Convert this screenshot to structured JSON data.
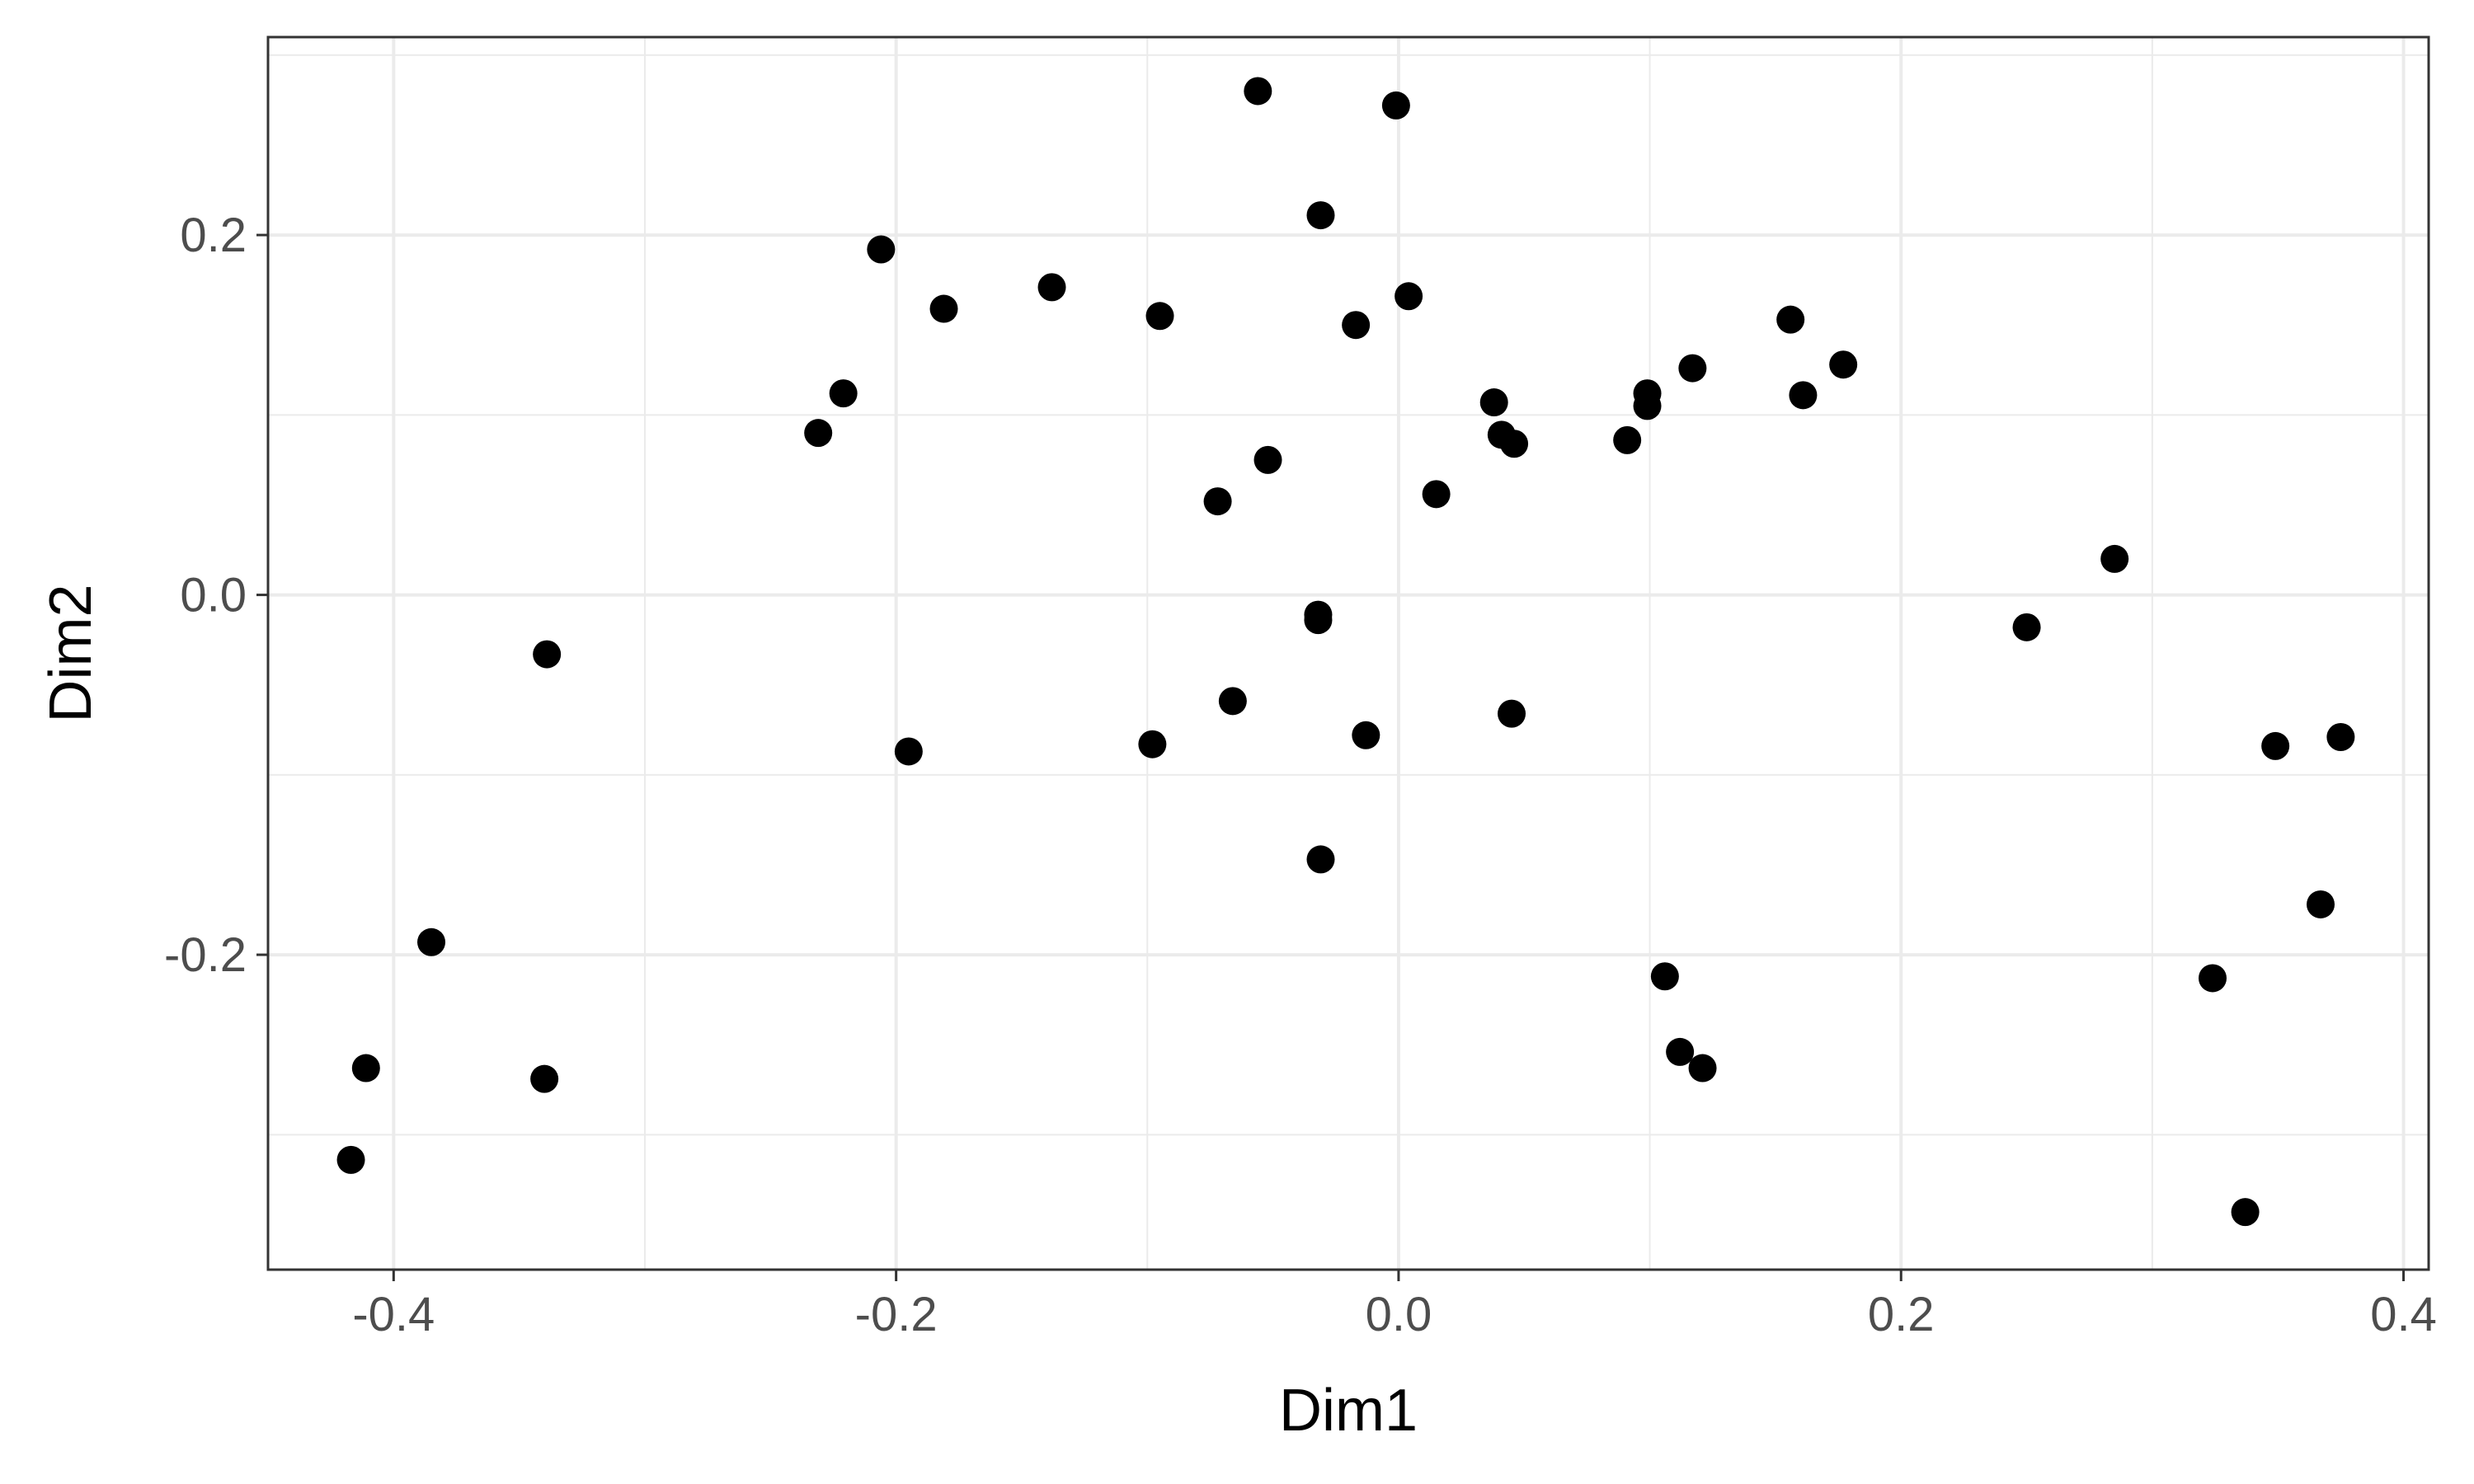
{
  "chart_data": {
    "type": "scatter",
    "title": "",
    "xlabel": "Dim1",
    "ylabel": "Dim2",
    "xlim": [
      -0.45,
      0.41
    ],
    "ylim": [
      -0.375,
      0.31
    ],
    "x_ticks": [
      -0.4,
      -0.2,
      0.0,
      0.2,
      0.4
    ],
    "x_tick_labels": [
      "-0.4",
      "-0.2",
      "0.0",
      "0.2",
      "0.4"
    ],
    "y_ticks": [
      -0.2,
      0.0,
      0.2
    ],
    "y_tick_labels": [
      "-0.2",
      "0.0",
      "0.2"
    ],
    "x_minor_ticks": [
      -0.3,
      -0.1,
      0.1,
      0.3
    ],
    "y_minor_ticks": [
      -0.3,
      -0.1,
      0.1,
      0.3
    ],
    "grid": true,
    "point_color": "#000000",
    "points": [
      {
        "x": -0.056,
        "y": 0.28
      },
      {
        "x": -0.001,
        "y": 0.272
      },
      {
        "x": -0.031,
        "y": 0.211
      },
      {
        "x": -0.206,
        "y": 0.192
      },
      {
        "x": -0.181,
        "y": 0.159
      },
      {
        "x": -0.138,
        "y": 0.171
      },
      {
        "x": -0.095,
        "y": 0.155
      },
      {
        "x": 0.004,
        "y": 0.166
      },
      {
        "x": -0.017,
        "y": 0.15
      },
      {
        "x": -0.221,
        "y": 0.112
      },
      {
        "x": -0.231,
        "y": 0.09
      },
      {
        "x": 0.038,
        "y": 0.107
      },
      {
        "x": 0.041,
        "y": 0.089
      },
      {
        "x": 0.046,
        "y": 0.084
      },
      {
        "x": 0.099,
        "y": 0.112
      },
      {
        "x": 0.099,
        "y": 0.105
      },
      {
        "x": 0.117,
        "y": 0.126
      },
      {
        "x": 0.156,
        "y": 0.153
      },
      {
        "x": 0.161,
        "y": 0.111
      },
      {
        "x": 0.177,
        "y": 0.128
      },
      {
        "x": 0.091,
        "y": 0.086
      },
      {
        "x": -0.052,
        "y": 0.075
      },
      {
        "x": -0.072,
        "y": 0.052
      },
      {
        "x": 0.015,
        "y": 0.056
      },
      {
        "x": 0.285,
        "y": 0.02
      },
      {
        "x": 0.25,
        "y": -0.018
      },
      {
        "x": -0.032,
        "y": -0.011
      },
      {
        "x": -0.032,
        "y": -0.014
      },
      {
        "x": -0.339,
        "y": -0.033
      },
      {
        "x": -0.066,
        "y": -0.059
      },
      {
        "x": 0.045,
        "y": -0.066
      },
      {
        "x": -0.013,
        "y": -0.078
      },
      {
        "x": -0.098,
        "y": -0.083
      },
      {
        "x": -0.195,
        "y": -0.087
      },
      {
        "x": 0.349,
        "y": -0.084
      },
      {
        "x": 0.375,
        "y": -0.079
      },
      {
        "x": -0.031,
        "y": -0.147
      },
      {
        "x": 0.367,
        "y": -0.172
      },
      {
        "x": -0.385,
        "y": -0.193
      },
      {
        "x": 0.106,
        "y": -0.212
      },
      {
        "x": 0.324,
        "y": -0.213
      },
      {
        "x": 0.112,
        "y": -0.254
      },
      {
        "x": 0.121,
        "y": -0.263
      },
      {
        "x": -0.411,
        "y": -0.263
      },
      {
        "x": -0.34,
        "y": -0.269
      },
      {
        "x": -0.417,
        "y": -0.314
      },
      {
        "x": 0.337,
        "y": -0.343
      }
    ]
  }
}
